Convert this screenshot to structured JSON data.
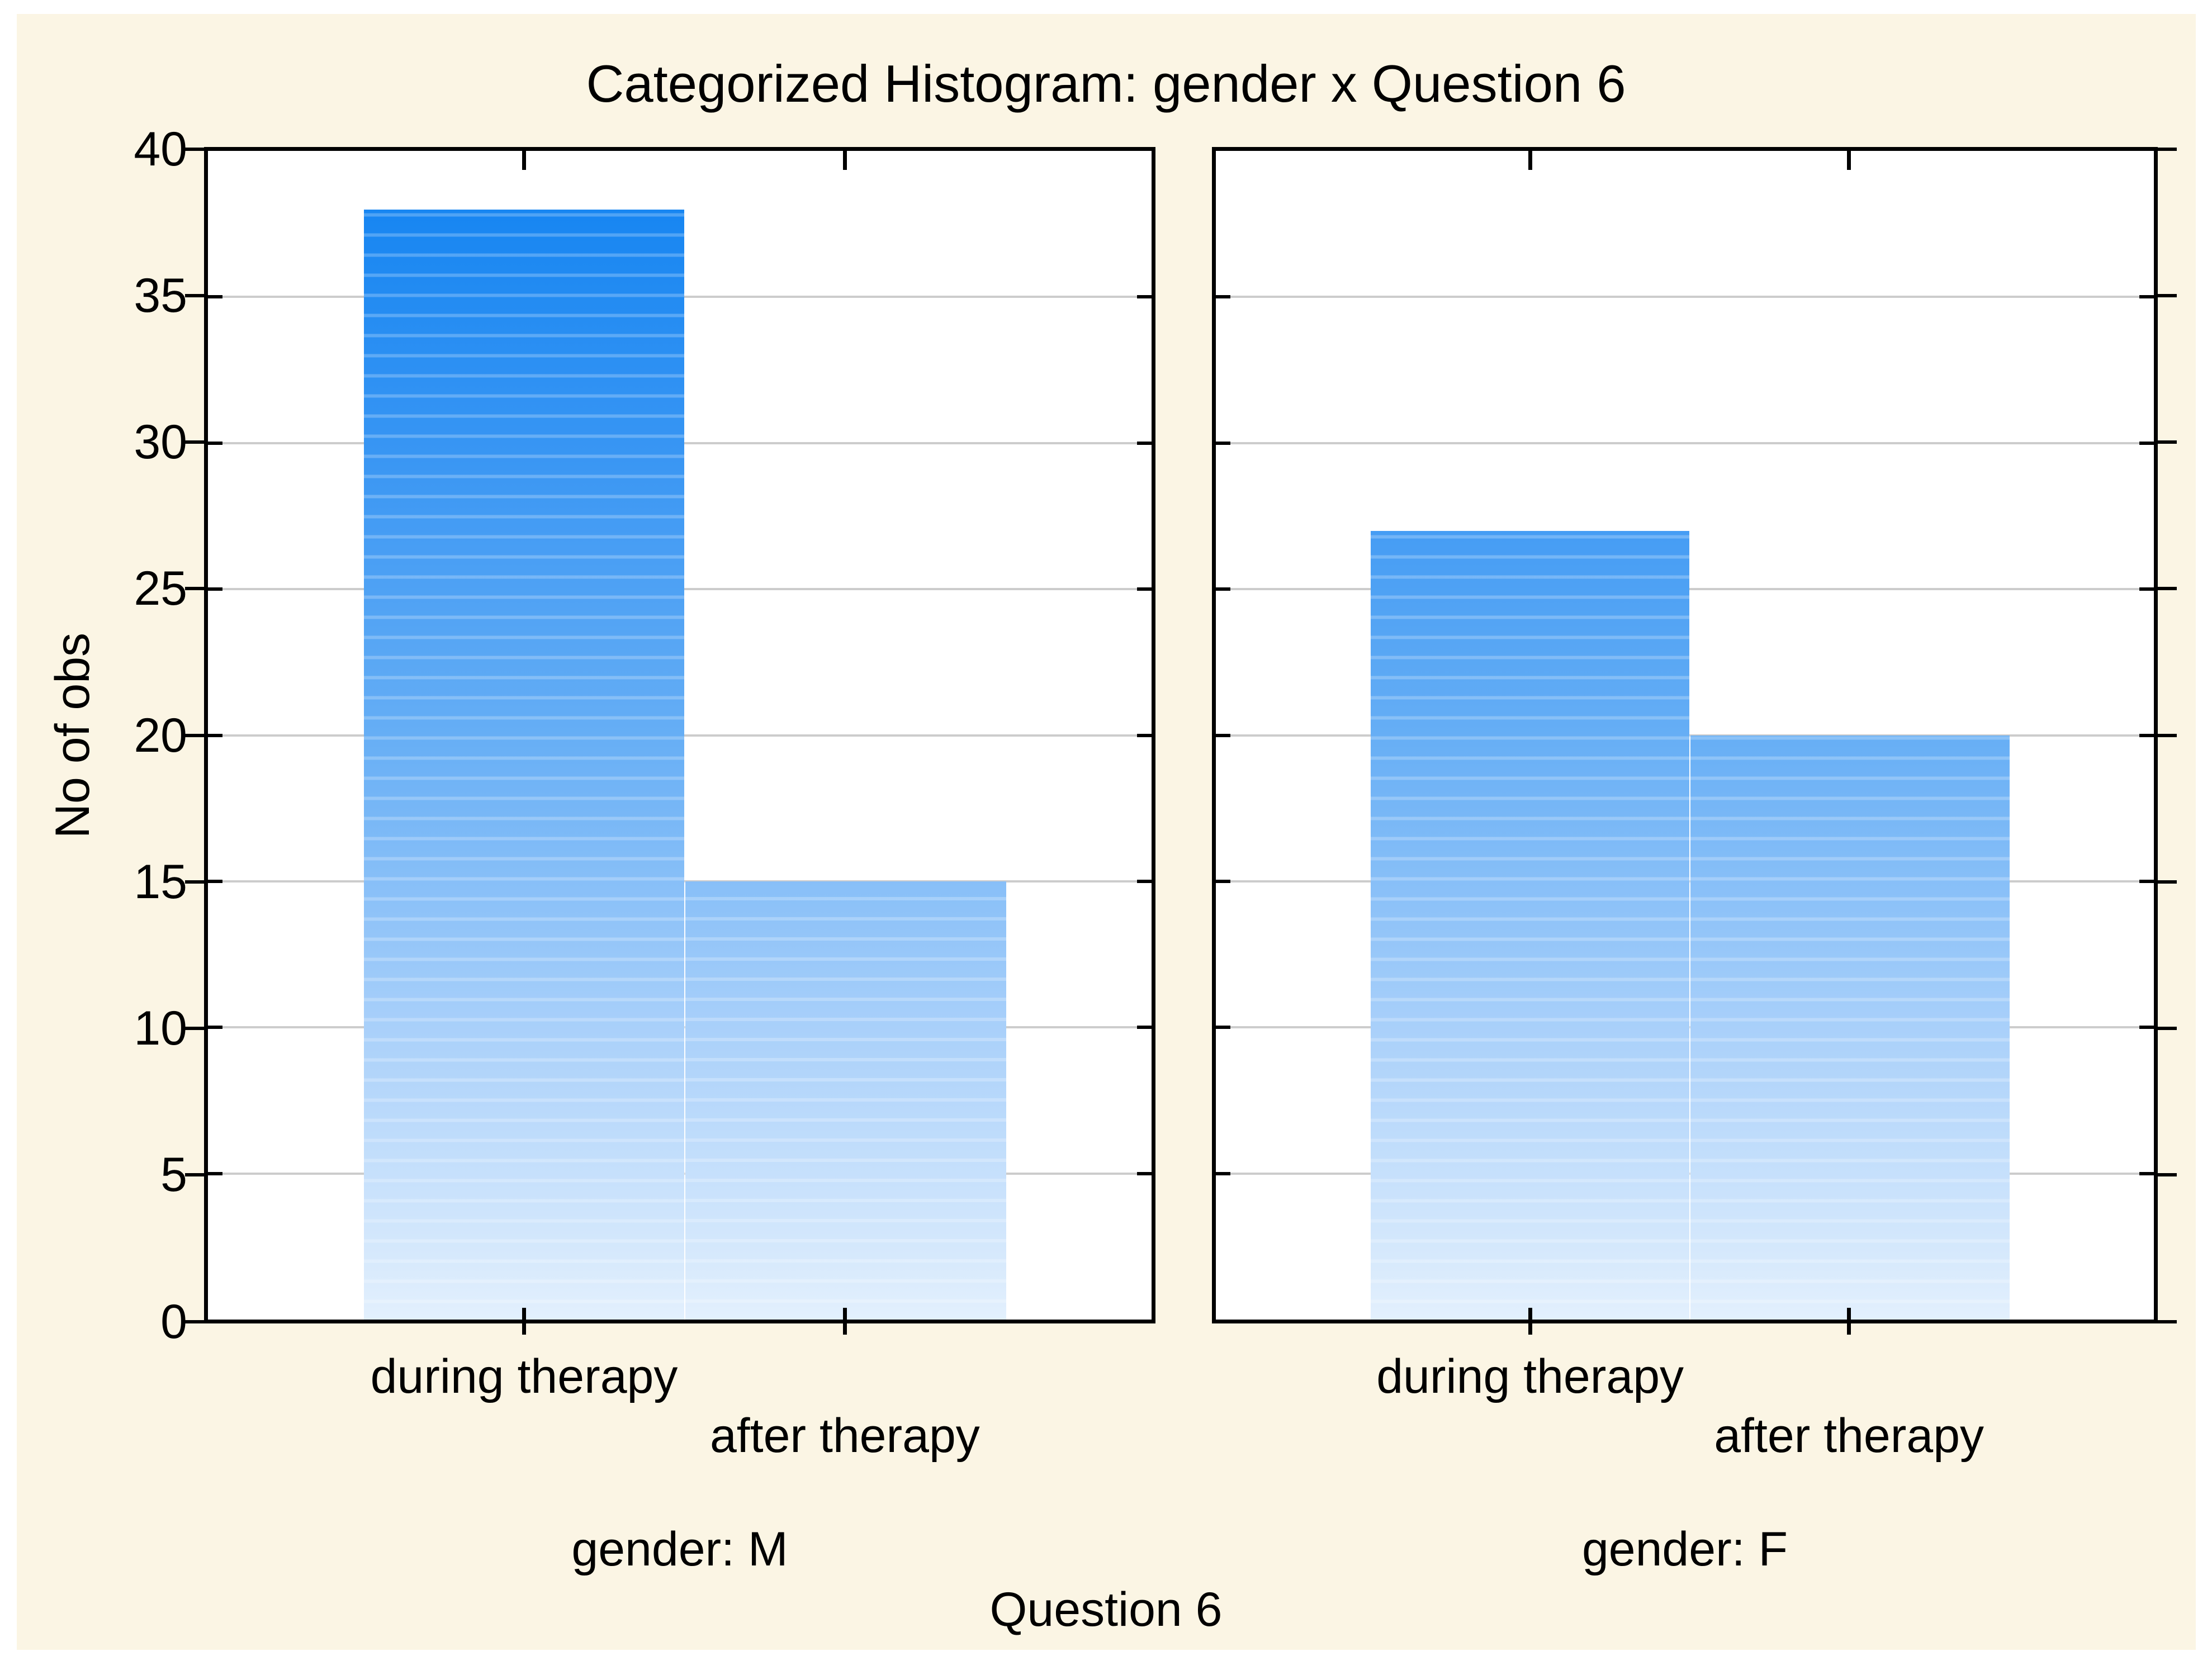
{
  "figure": {
    "title": "Categorized Histogram: gender x Question 6",
    "background_color": "#fbf5e4",
    "plot_background": "#ffffff",
    "grid_color": "#cccccc",
    "axis_color": "#000000"
  },
  "chart_data": {
    "type": "bar",
    "title": "Categorized Histogram: gender x Question 6",
    "xlabel": "Question 6",
    "ylabel": "No of obs",
    "ylim": [
      0,
      40
    ],
    "yticks": [
      0,
      5,
      10,
      15,
      20,
      25,
      30,
      35,
      40
    ],
    "grid": true,
    "categories": [
      "during therapy",
      "after therapy"
    ],
    "panels": [
      {
        "label": "gender: M",
        "values": [
          38,
          15
        ]
      },
      {
        "label": "gender: F",
        "values": [
          27,
          20
        ]
      }
    ],
    "bar_gradient": {
      "stops": [
        "#e3f0fd",
        "#a9d0fa",
        "#66aef5",
        "#3795f3",
        "#0f82f2"
      ],
      "stripe_color": "rgba(255,255,255,0.24)"
    }
  }
}
